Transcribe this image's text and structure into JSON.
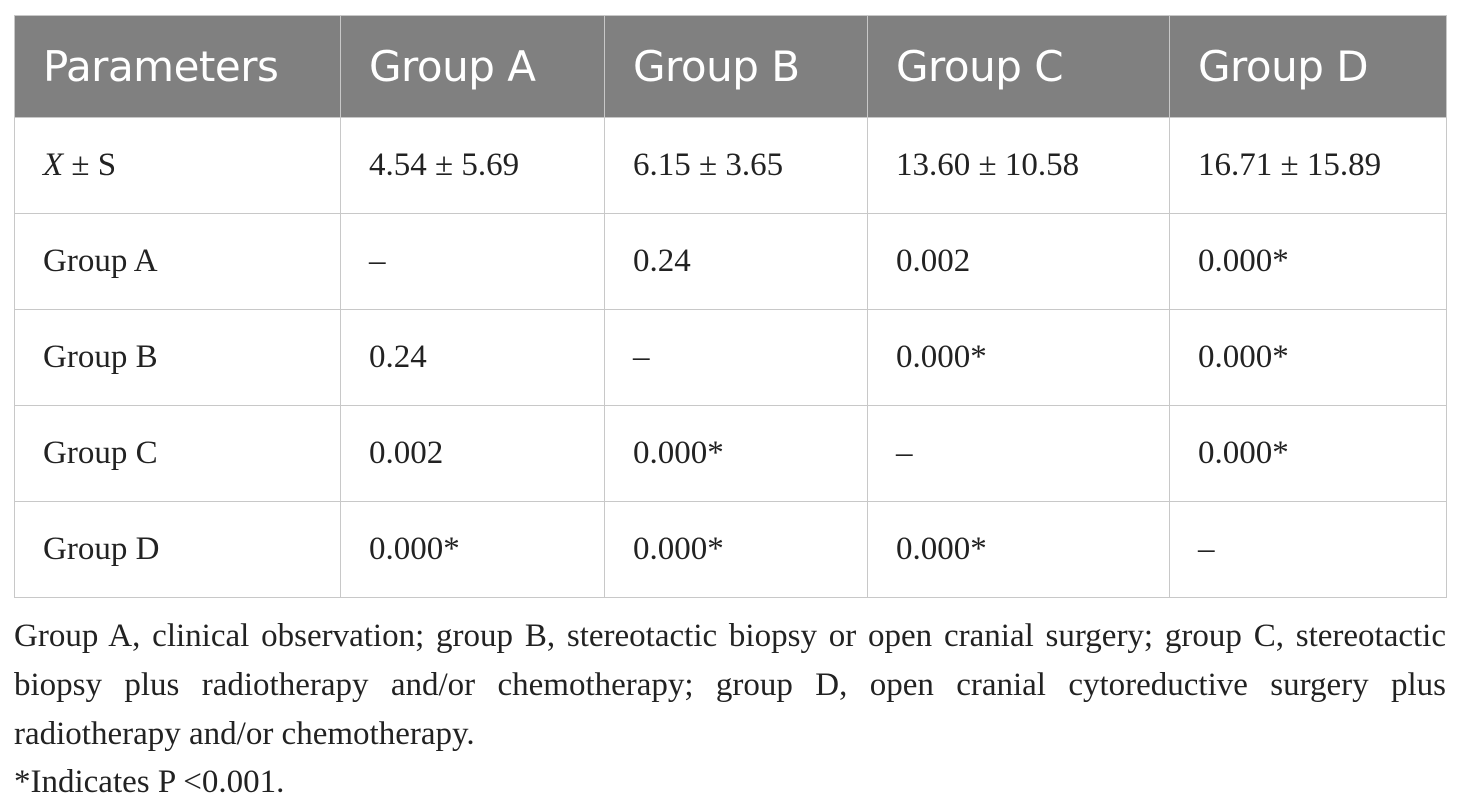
{
  "table": {
    "headers": [
      "Parameters",
      "Group A",
      "Group B",
      "Group C",
      "Group D"
    ],
    "rows": [
      {
        "label_italic": "X",
        "label_rest": " ± S",
        "cells": [
          "4.54 ± 5.69",
          "6.15 ± 3.65",
          "13.60 ± 10.58",
          "16.71 ± 15.89"
        ]
      },
      {
        "label": "Group A",
        "cells": [
          "–",
          "0.24",
          "0.002",
          "0.000*"
        ]
      },
      {
        "label": "Group B",
        "cells": [
          "0.24",
          "–",
          "0.000*",
          "0.000*"
        ]
      },
      {
        "label": "Group C",
        "cells": [
          "0.002",
          "0.000*",
          "–",
          "0.000*"
        ]
      },
      {
        "label": "Group D",
        "cells": [
          "0.000*",
          "0.000*",
          "0.000*",
          "–"
        ]
      }
    ]
  },
  "note": "Group A, clinical observation; group B, stereotactic biopsy or open cranial surgery; group C, stereotactic biopsy plus radiotherapy and/or chemotherapy; group D, open cranial cytoreductive surgery plus radiotherapy and/or chemotherapy.",
  "footnote": "*Indicates P <0.001.",
  "colors": {
    "header_bg": "#808080",
    "header_text": "#ffffff",
    "grid": "#c8c8c8"
  }
}
